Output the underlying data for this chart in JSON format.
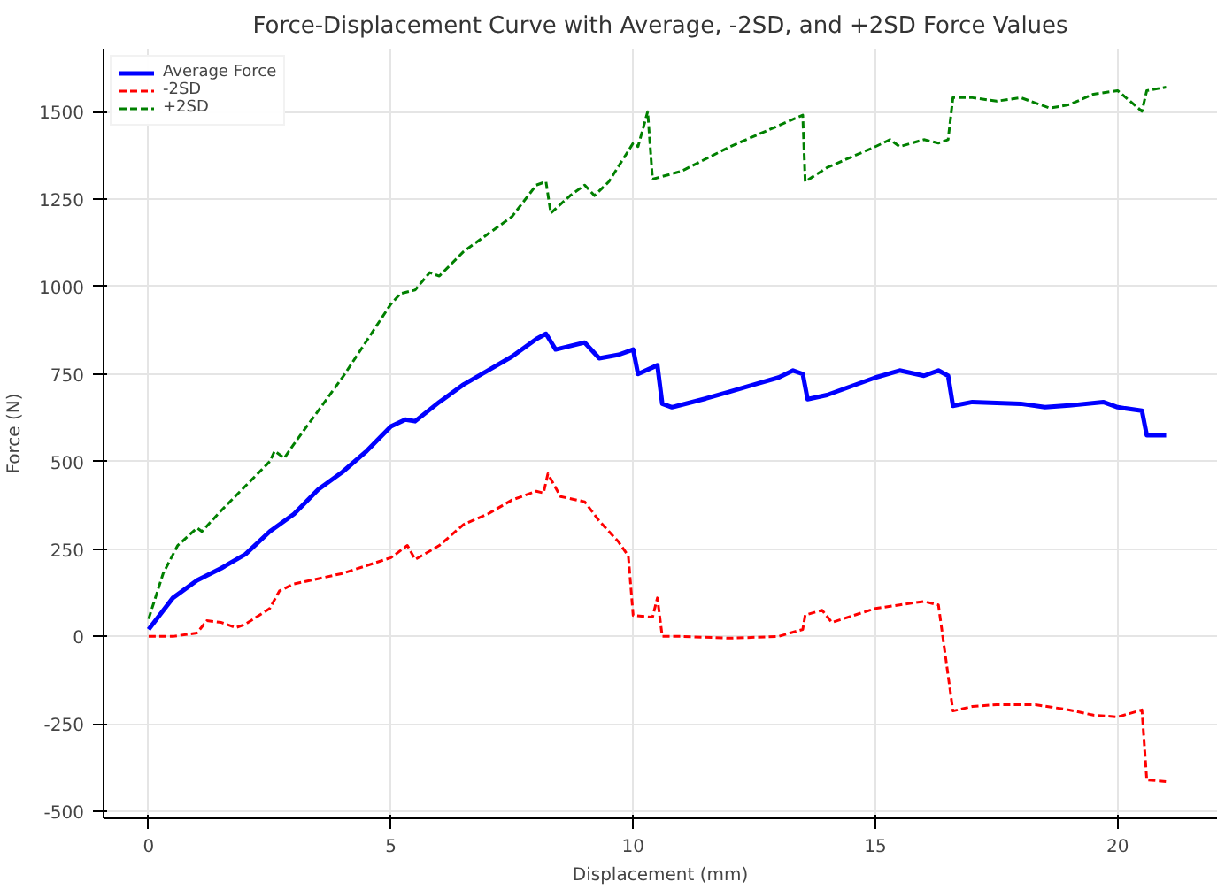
{
  "chart_data": {
    "type": "line",
    "title": "Force-Displacement Curve with Average, -2SD, and +2SD Force Values",
    "xlabel": "Displacement (mm)",
    "ylabel": "Force (N)",
    "xlim": [
      -0.93,
      22.05
    ],
    "ylim": [
      -520,
      1680
    ],
    "xticks": [
      0,
      5,
      10,
      15,
      20
    ],
    "yticks": [
      -500,
      -250,
      0,
      250,
      500,
      750,
      1000,
      1250,
      1500
    ],
    "grid": true,
    "legend": "top left",
    "series": [
      {
        "name": "Average Force",
        "color": "#0000ff",
        "line_style": "solid",
        "x": [
          0,
          0.5,
          1,
          1.5,
          2,
          2.5,
          3,
          3.5,
          4,
          4.5,
          5,
          5.3,
          5.5,
          6,
          6.5,
          7,
          7.5,
          8,
          8.2,
          8.4,
          8.7,
          9,
          9.3,
          9.7,
          10,
          10.1,
          10.5,
          10.6,
          10.8,
          11.5,
          12,
          12.5,
          13,
          13.3,
          13.5,
          13.6,
          14,
          15,
          15.5,
          16,
          16.3,
          16.5,
          16.6,
          17,
          18,
          18.5,
          19,
          19.7,
          20,
          20.5,
          20.6,
          21
        ],
        "values": [
          20,
          110,
          160,
          195,
          235,
          300,
          350,
          420,
          470,
          530,
          600,
          620,
          615,
          670,
          720,
          760,
          800,
          850,
          865,
          820,
          830,
          840,
          795,
          805,
          820,
          750,
          775,
          665,
          655,
          680,
          700,
          720,
          740,
          760,
          750,
          678,
          690,
          740,
          760,
          745,
          760,
          745,
          659,
          670,
          665,
          655,
          660,
          670,
          655,
          645,
          575,
          575
        ]
      },
      {
        "name": "-2SD",
        "color": "#ff0000",
        "line_style": "dashed",
        "x": [
          0,
          0.5,
          1,
          1.2,
          1.5,
          1.8,
          2,
          2.5,
          2.7,
          3,
          4,
          5,
          5.34,
          5.5,
          6,
          6.5,
          7,
          7.5,
          8,
          8.15,
          8.24,
          8.5,
          9,
          9.3,
          9.7,
          9.9,
          10,
          10.4,
          10.5,
          10.6,
          11,
          12,
          13,
          13.5,
          13.55,
          13.9,
          14.1,
          15,
          15.5,
          16,
          16.3,
          16.6,
          17,
          17.5,
          18.3,
          19,
          19.5,
          20,
          20.5,
          20.6,
          21
        ],
        "values": [
          0,
          0,
          10,
          45,
          40,
          25,
          35,
          80,
          130,
          150,
          180,
          225,
          260,
          220,
          260,
          320,
          350,
          390,
          415,
          410,
          465,
          400,
          385,
          330,
          270,
          230,
          60,
          55,
          110,
          0,
          0,
          -5,
          0,
          20,
          61,
          75,
          40,
          80,
          90,
          100,
          90,
          -213,
          -200,
          -195,
          -195,
          -210,
          -225,
          -230,
          -210,
          -410,
          -415
        ]
      },
      {
        "name": "+2SD",
        "color": "#008000",
        "line_style": "dashed",
        "x": [
          0,
          0.3,
          0.6,
          1,
          1.1,
          1.5,
          2,
          2.5,
          2.6,
          2.8,
          3,
          4,
          5,
          5.2,
          5.5,
          5.8,
          6,
          6.5,
          7,
          7.5,
          8,
          8.2,
          8.3,
          8.7,
          9,
          9.2,
          9.5,
          10,
          10.1,
          10.3,
          10.4,
          11,
          12,
          13,
          13.5,
          13.55,
          14,
          15,
          15.3,
          15.5,
          16,
          16.3,
          16.5,
          16.6,
          17,
          17.5,
          18,
          18.6,
          19,
          19.5,
          20,
          20.5,
          20.6,
          21
        ],
        "values": [
          50,
          180,
          260,
          310,
          300,
          360,
          430,
          500,
          530,
          510,
          550,
          740,
          950,
          980,
          990,
          1040,
          1030,
          1100,
          1150,
          1200,
          1290,
          1300,
          1210,
          1260,
          1290,
          1260,
          1300,
          1410,
          1400,
          1500,
          1307,
          1330,
          1400,
          1460,
          1490,
          1300,
          1340,
          1400,
          1420,
          1400,
          1420,
          1410,
          1420,
          1540,
          1540,
          1530,
          1540,
          1510,
          1520,
          1550,
          1560,
          1501,
          1560,
          1570
        ]
      }
    ]
  }
}
